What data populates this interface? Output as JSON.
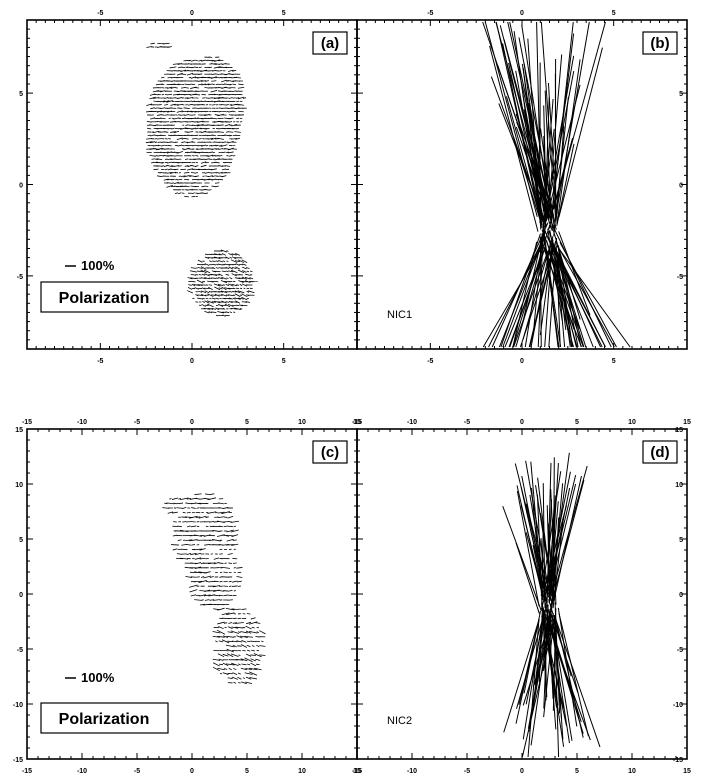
{
  "figure": {
    "panels": [
      {
        "label": "(a)",
        "kind": "vector-map",
        "x_range": [
          -9,
          9
        ],
        "y_range": [
          -9,
          9
        ],
        "x_ticks": [
          "-5",
          "0",
          "5"
        ],
        "y_ticks": [
          "5",
          "0",
          "-5"
        ],
        "scale_label": "100%",
        "legend_box": "Polarization",
        "instrument": ""
      },
      {
        "label": "(b)",
        "kind": "line-map",
        "x_range": [
          -9,
          9
        ],
        "y_range": [
          -9,
          9
        ],
        "x_ticks": [
          "-5",
          "0",
          "5"
        ],
        "y_ticks": [
          "5",
          "0",
          "-5"
        ],
        "scale_label": "",
        "legend_box": "",
        "instrument": "NIC1"
      },
      {
        "label": "(c)",
        "kind": "vector-map",
        "x_range": [
          -15,
          15
        ],
        "y_range": [
          -15,
          15
        ],
        "x_ticks": [
          "-15",
          "-10",
          "-5",
          "0",
          "5",
          "10",
          "15"
        ],
        "y_ticks": [
          "15",
          "10",
          "5",
          "0",
          "-5",
          "-10",
          "-15"
        ],
        "scale_label": "100%",
        "legend_box": "Polarization",
        "instrument": ""
      },
      {
        "label": "(d)",
        "kind": "line-map",
        "x_range": [
          -15,
          15
        ],
        "y_range": [
          -15,
          15
        ],
        "x_ticks": [
          "-15",
          "-10",
          "-5",
          "0",
          "5",
          "10",
          "15"
        ],
        "y_ticks": [
          "15",
          "10",
          "5",
          "0",
          "-5",
          "-10",
          "-15"
        ],
        "scale_label": "",
        "legend_box": "",
        "instrument": "NIC2"
      }
    ]
  }
}
